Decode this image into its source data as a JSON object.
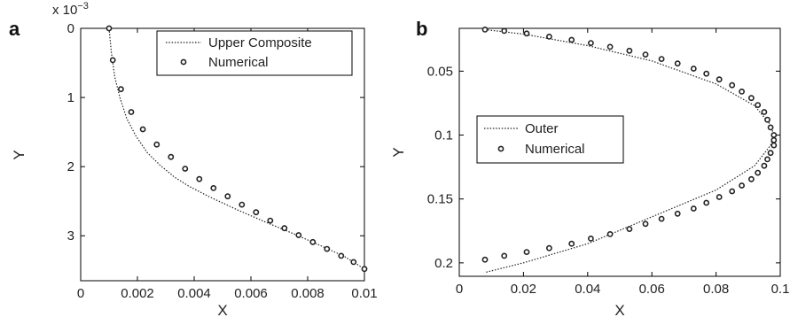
{
  "chart_data": [
    {
      "type": "line",
      "panel_label": "a",
      "xlabel": "X",
      "ylabel": "Y",
      "xlim": [
        0,
        0.01
      ],
      "ylim": [
        0,
        3.65
      ],
      "y_reversed": true,
      "y_multiplier_label": "x 10",
      "y_multiplier_exponent": "−3",
      "x_ticks": [
        "0",
        "0.002",
        "0.004",
        "0.006",
        "0.008",
        "0.01"
      ],
      "x_tick_values": [
        0,
        0.002,
        0.004,
        0.006,
        0.008,
        0.01
      ],
      "y_ticks": [
        "0",
        "1",
        "2",
        "3"
      ],
      "y_tick_values": [
        0,
        1,
        2,
        3
      ],
      "legend_position": "top-right",
      "series": [
        {
          "name": "Upper Composite",
          "style": "dotted-line",
          "x": [
            0.001,
            0.00108,
            0.0012,
            0.00138,
            0.00162,
            0.00195,
            0.00235,
            0.0028,
            0.0033,
            0.0038,
            0.0045,
            0.0055,
            0.0065,
            0.0075,
            0.0085,
            0.0093,
            0.01
          ],
          "y": [
            0,
            0.35,
            0.7,
            1.0,
            1.3,
            1.56,
            1.8,
            1.98,
            2.15,
            2.28,
            2.43,
            2.62,
            2.8,
            2.97,
            3.15,
            3.3,
            3.48
          ]
        },
        {
          "name": "Numerical",
          "style": "open-circle",
          "x": [
            0.001,
            0.00113,
            0.00142,
            0.00178,
            0.00219,
            0.00268,
            0.00318,
            0.00368,
            0.00418,
            0.00468,
            0.00518,
            0.00568,
            0.00618,
            0.00668,
            0.00718,
            0.00768,
            0.00818,
            0.00868,
            0.00918,
            0.00962,
            0.01
          ],
          "y": [
            0,
            0.46,
            0.88,
            1.21,
            1.46,
            1.68,
            1.86,
            2.03,
            2.18,
            2.31,
            2.43,
            2.55,
            2.66,
            2.78,
            2.89,
            2.99,
            3.09,
            3.19,
            3.29,
            3.38,
            3.48
          ]
        }
      ]
    },
    {
      "type": "line",
      "panel_label": "b",
      "xlabel": "X",
      "ylabel": "Y",
      "xlim": [
        0,
        0.1
      ],
      "ylim": [
        0.0165,
        0.2105
      ],
      "y_reversed": true,
      "x_ticks": [
        "0",
        "0.02",
        "0.04",
        "0.06",
        "0.08",
        "0.1"
      ],
      "x_tick_values": [
        0,
        0.02,
        0.04,
        0.06,
        0.08,
        0.1
      ],
      "y_ticks": [
        "0.05",
        "0.1",
        "0.15",
        "0.2"
      ],
      "y_tick_values": [
        0.05,
        0.1,
        0.15,
        0.2
      ],
      "legend_position": "center-left",
      "series": [
        {
          "name": "Outer",
          "style": "dotted-line",
          "x": [
            0.008,
            0.02,
            0.04,
            0.06,
            0.08,
            0.092,
            0.097,
            0.098,
            0.097,
            0.092,
            0.08,
            0.06,
            0.04,
            0.02,
            0.008
          ],
          "y": [
            0.0175,
            0.021,
            0.03,
            0.042,
            0.06,
            0.077,
            0.092,
            0.1,
            0.108,
            0.124,
            0.143,
            0.164,
            0.185,
            0.2,
            0.2075
          ]
        },
        {
          "name": "Numerical",
          "style": "open-circle",
          "x": [
            0.008,
            0.014,
            0.021,
            0.028,
            0.035,
            0.041,
            0.047,
            0.053,
            0.058,
            0.063,
            0.068,
            0.073,
            0.077,
            0.081,
            0.085,
            0.088,
            0.091,
            0.093,
            0.095,
            0.096,
            0.097,
            0.098,
            0.098,
            0.098,
            0.097,
            0.096,
            0.095,
            0.093,
            0.091,
            0.088,
            0.085,
            0.081,
            0.077,
            0.073,
            0.068,
            0.063,
            0.058,
            0.053,
            0.047,
            0.041,
            0.035,
            0.028,
            0.021,
            0.014,
            0.008
          ],
          "y": [
            0.0175,
            0.0185,
            0.0205,
            0.023,
            0.0255,
            0.028,
            0.031,
            0.034,
            0.037,
            0.0405,
            0.044,
            0.048,
            0.052,
            0.0565,
            0.061,
            0.066,
            0.071,
            0.0765,
            0.082,
            0.088,
            0.094,
            0.1,
            0.104,
            0.108,
            0.114,
            0.119,
            0.124,
            0.1295,
            0.1345,
            0.1395,
            0.144,
            0.1485,
            0.153,
            0.1575,
            0.1615,
            0.1655,
            0.1695,
            0.1735,
            0.1775,
            0.181,
            0.185,
            0.1885,
            0.1915,
            0.1945,
            0.1975
          ]
        }
      ]
    }
  ]
}
